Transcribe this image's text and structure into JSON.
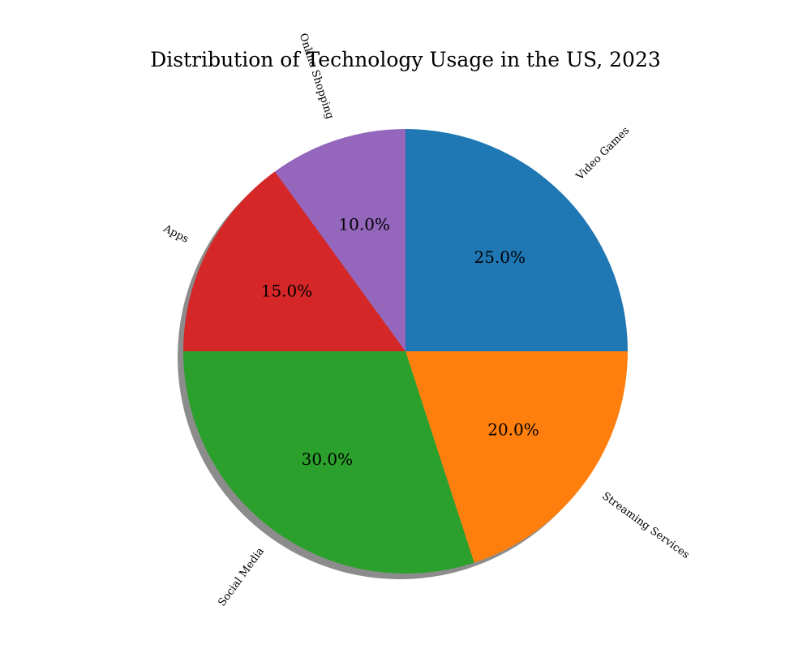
{
  "chart_data": {
    "type": "pie",
    "title": "Distribution of Technology Usage in the US, 2023",
    "categories": [
      "Video Games",
      "Streaming Services",
      "Social Media",
      "Apps",
      "Online Shopping"
    ],
    "values": [
      25.0,
      20.0,
      30.0,
      15.0,
      10.0
    ],
    "value_labels": [
      "25.0%",
      "20.0%",
      "30.0%",
      "15.0%",
      "10.0%"
    ],
    "colors": [
      "#1f77b4",
      "#ff7f0e",
      "#2ca02c",
      "#d62728",
      "#9467bd"
    ],
    "start_angle_deg": 90,
    "direction": "clockwise",
    "shadow": true,
    "legend": "none",
    "rotated_labels": true
  }
}
